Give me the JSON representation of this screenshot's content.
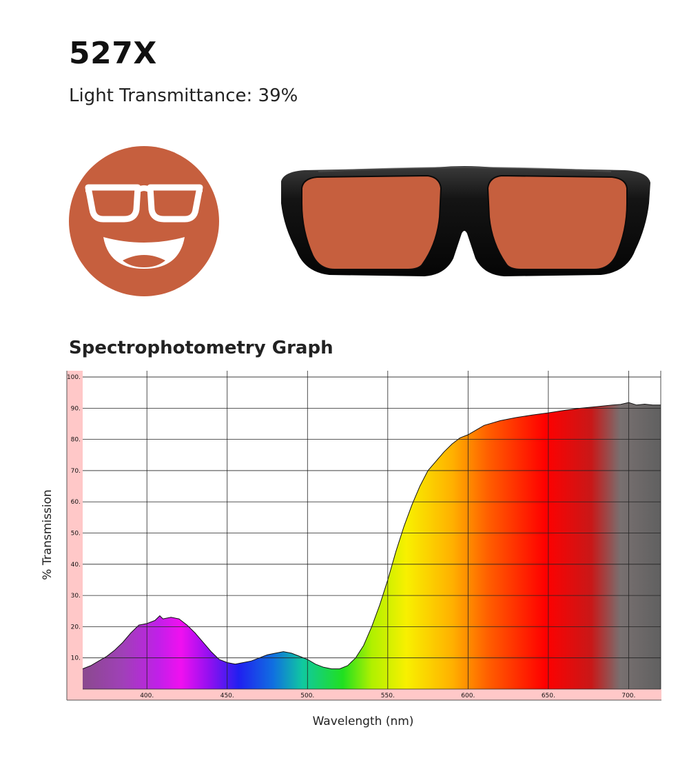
{
  "product": {
    "name": "527X",
    "light_transmittance_text": "Light Transmittance: 39%",
    "lens_color": "#C65F3E",
    "frame_color": "#1a1a1a"
  },
  "icons": {
    "emoji": "smiling-glasses-face-icon",
    "glasses": "sunglasses-product-image"
  },
  "graph": {
    "heading": "Spectrophotometry Graph"
  },
  "chart_data": {
    "type": "area",
    "title": "",
    "xlabel": "Wavelength (nm)",
    "ylabel": "% Transmission",
    "xlim": [
      360,
      720
    ],
    "ylim": [
      0,
      102
    ],
    "xticks": [
      400,
      450,
      500,
      550,
      600,
      650,
      700
    ],
    "xtick_labels": [
      "400.",
      "450.",
      "500.",
      "550.",
      "600.",
      "650.",
      "700."
    ],
    "yticks": [
      10,
      20,
      30,
      40,
      50,
      60,
      70,
      80,
      90,
      100
    ],
    "ytick_labels": [
      "10.",
      "20.",
      "30.",
      "40.",
      "50.",
      "60.",
      "70.",
      "80.",
      "90.",
      "100."
    ],
    "grid": true,
    "series": [
      {
        "x": [
          360,
          365,
          370,
          375,
          380,
          385,
          390,
          395,
          400,
          405,
          408,
          410,
          415,
          420,
          425,
          430,
          435,
          440,
          445,
          450,
          455,
          460,
          465,
          470,
          475,
          480,
          485,
          490,
          495,
          500,
          505,
          510,
          515,
          520,
          525,
          530,
          535,
          540,
          545,
          550,
          555,
          560,
          565,
          570,
          575,
          580,
          585,
          590,
          595,
          600,
          605,
          610,
          620,
          630,
          640,
          650,
          660,
          670,
          680,
          690,
          695,
          700,
          705,
          710,
          715,
          720
        ],
        "y": [
          6.5,
          7.5,
          9,
          10.5,
          12.5,
          15,
          18,
          20.5,
          21,
          22,
          23.5,
          22.5,
          23,
          22.5,
          20.5,
          18,
          15,
          12,
          9.5,
          8.5,
          8,
          8.5,
          9,
          10,
          11,
          11.5,
          12,
          11.5,
          10.5,
          9.5,
          8,
          7,
          6.5,
          6.5,
          7.5,
          10,
          14,
          20,
          27,
          35,
          44,
          52,
          59,
          65,
          70,
          73,
          76,
          78.5,
          80.5,
          81.5,
          83,
          84.5,
          86,
          87,
          87.8,
          88.5,
          89.3,
          90,
          90.5,
          91,
          91.2,
          91.8,
          91,
          91.3,
          91,
          91
        ]
      }
    ]
  }
}
